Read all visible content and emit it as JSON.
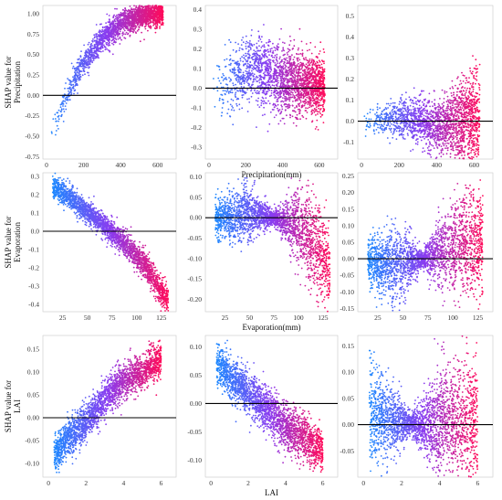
{
  "figure": {
    "colors": {
      "low": "#1e88ff",
      "mid": "#8a3cf0",
      "high": "#ff0b5a",
      "zero_line": "#000000"
    }
  },
  "chart_data": [
    {
      "type": "scatter",
      "row": 0,
      "col": 0,
      "feature": "Precipitation",
      "ylabel": "SHAP value for\nPrecipitation",
      "xlabel": "",
      "xlim": [
        -20,
        700
      ],
      "ylim": [
        -0.78,
        1.1
      ],
      "xticks": [
        0,
        200,
        400,
        600
      ],
      "yticks": [
        -0.75,
        -0.5,
        -0.25,
        0.0,
        0.25,
        0.5,
        0.75,
        1.0
      ],
      "xtick_labels": [
        "0",
        "200",
        "400",
        "600"
      ],
      "ytick_labels": [
        "-0.75",
        "-0.50",
        "-0.25",
        "0.00",
        "0.25",
        "0.50",
        "0.75",
        "1.00"
      ],
      "x_dist": [
        20,
        630,
        0.55
      ],
      "trend": [
        [
          0,
          -0.62
        ],
        [
          50,
          -0.35
        ],
        [
          100,
          -0.05
        ],
        [
          150,
          0.18
        ],
        [
          200,
          0.4
        ],
        [
          300,
          0.7
        ],
        [
          400,
          0.88
        ],
        [
          500,
          0.97
        ],
        [
          650,
          1.02
        ]
      ],
      "spread": [
        [
          0,
          0.08
        ],
        [
          300,
          0.08
        ],
        [
          650,
          0.07
        ]
      ],
      "n": 2200
    },
    {
      "type": "scatter",
      "row": 0,
      "col": 1,
      "feature": "Precipitation",
      "ylabel": "",
      "xlabel": "Precipitation(mm)",
      "xlim": [
        -20,
        700
      ],
      "ylim": [
        -0.36,
        0.42
      ],
      "xticks": [
        0,
        200,
        400,
        600
      ],
      "yticks": [
        -0.3,
        -0.2,
        -0.1,
        0.0,
        0.1,
        0.2,
        0.3,
        0.4
      ],
      "xtick_labels": [
        "0",
        "200",
        "400",
        "600"
      ],
      "ytick_labels": [
        "-0.3",
        "-0.2",
        "-0.1",
        "0.0",
        "0.1",
        "0.2",
        "0.3",
        "0.4"
      ],
      "x_dist": [
        10,
        630,
        0.55
      ],
      "trend": [
        [
          0,
          -0.12
        ],
        [
          30,
          -0.02
        ],
        [
          100,
          0.03
        ],
        [
          200,
          0.08
        ],
        [
          250,
          0.1
        ],
        [
          350,
          0.05
        ],
        [
          500,
          0.02
        ],
        [
          650,
          0.0
        ]
      ],
      "spread": [
        [
          0,
          0.1
        ],
        [
          200,
          0.08
        ],
        [
          300,
          0.09
        ],
        [
          600,
          0.07
        ]
      ],
      "n": 2200
    },
    {
      "type": "scatter",
      "row": 0,
      "col": 2,
      "feature": "Precipitation",
      "ylabel": "",
      "xlabel": "",
      "xlim": [
        -20,
        700
      ],
      "ylim": [
        -0.18,
        0.55
      ],
      "xticks": [
        0,
        200,
        400,
        600
      ],
      "yticks": [
        -0.1,
        0.0,
        0.1,
        0.2,
        0.3,
        0.4,
        0.5
      ],
      "xtick_labels": [
        "0",
        "200",
        "400",
        "600"
      ],
      "ytick_labels": [
        "-0.1",
        "0.0",
        "0.1",
        "0.2",
        "0.3",
        "0.4",
        "0.5"
      ],
      "x_dist": [
        10,
        630,
        0.55
      ],
      "trend": [
        [
          0,
          0.0
        ],
        [
          100,
          0.0
        ],
        [
          200,
          0.02
        ],
        [
          300,
          0.0
        ],
        [
          400,
          -0.02
        ],
        [
          600,
          0.0
        ]
      ],
      "spread": [
        [
          0,
          0.05
        ],
        [
          100,
          0.03
        ],
        [
          250,
          0.05
        ],
        [
          400,
          0.06
        ],
        [
          600,
          0.12
        ]
      ],
      "n": 2000
    },
    {
      "type": "scatter",
      "row": 1,
      "col": 0,
      "feature": "Evaporation",
      "ylabel": "SHAP value for\nEvaporation",
      "xlabel": "",
      "xlim": [
        5,
        140
      ],
      "ylim": [
        -0.44,
        0.32
      ],
      "xticks": [
        25,
        50,
        75,
        100,
        125
      ],
      "yticks": [
        -0.4,
        -0.3,
        -0.2,
        -0.1,
        0.0,
        0.1,
        0.2,
        0.3
      ],
      "xtick_labels": [
        "25",
        "50",
        "75",
        "100",
        "125"
      ],
      "ytick_labels": [
        "-0.4",
        "-0.3",
        "-0.2",
        "-0.1",
        "0.0",
        "0.1",
        "0.2",
        "0.3"
      ],
      "x_dist": [
        15,
        132,
        1.0
      ],
      "trend": [
        [
          15,
          0.25
        ],
        [
          40,
          0.15
        ],
        [
          70,
          0.02
        ],
        [
          90,
          -0.08
        ],
        [
          110,
          -0.2
        ],
        [
          130,
          -0.37
        ]
      ],
      "spread": [
        [
          15,
          0.03
        ],
        [
          70,
          0.03
        ],
        [
          130,
          0.04
        ]
      ],
      "n": 2400
    },
    {
      "type": "scatter",
      "row": 1,
      "col": 1,
      "feature": "Evaporation",
      "ylabel": "",
      "xlabel": "Evaporation(mm)",
      "xlim": [
        5,
        140
      ],
      "ylim": [
        -0.23,
        0.11
      ],
      "xticks": [
        25,
        50,
        75,
        100,
        125
      ],
      "yticks": [
        -0.2,
        -0.15,
        -0.1,
        -0.05,
        0.0,
        0.05,
        0.1
      ],
      "xtick_labels": [
        "25",
        "50",
        "75",
        "100",
        "125"
      ],
      "ytick_labels": [
        "-0.20",
        "-0.15",
        "-0.10",
        "-0.05",
        "0.00",
        "0.05",
        "0.10"
      ],
      "x_dist": [
        15,
        132,
        1.0
      ],
      "trend": [
        [
          20,
          0.0
        ],
        [
          50,
          0.01
        ],
        [
          75,
          0.0
        ],
        [
          100,
          -0.02
        ],
        [
          120,
          -0.08
        ],
        [
          130,
          -0.13
        ]
      ],
      "spread": [
        [
          20,
          0.025
        ],
        [
          45,
          0.035
        ],
        [
          75,
          0.008
        ],
        [
          100,
          0.045
        ],
        [
          130,
          0.06
        ]
      ],
      "n": 2400
    },
    {
      "type": "scatter",
      "row": 1,
      "col": 2,
      "feature": "Evaporation",
      "ylabel": "",
      "xlabel": "",
      "xlim": [
        5,
        140
      ],
      "ylim": [
        -0.16,
        0.26
      ],
      "xticks": [
        25,
        50,
        75,
        100,
        125
      ],
      "yticks": [
        -0.15,
        -0.1,
        -0.05,
        0.0,
        0.05,
        0.1,
        0.15,
        0.2,
        0.25
      ],
      "xtick_labels": [
        "25",
        "50",
        "75",
        "100",
        "125"
      ],
      "ytick_labels": [
        "-0.15",
        "-0.10",
        "-0.05",
        "0.00",
        "0.05",
        "0.10",
        "0.15",
        "0.20",
        "0.25"
      ],
      "x_dist": [
        15,
        130,
        1.0
      ],
      "trend": [
        [
          20,
          -0.01
        ],
        [
          45,
          -0.02
        ],
        [
          70,
          0.0
        ],
        [
          95,
          0.03
        ],
        [
          110,
          0.05
        ],
        [
          125,
          0.04
        ]
      ],
      "spread": [
        [
          20,
          0.04
        ],
        [
          45,
          0.06
        ],
        [
          70,
          0.012
        ],
        [
          95,
          0.07
        ],
        [
          125,
          0.08
        ]
      ],
      "n": 2400
    },
    {
      "type": "scatter",
      "row": 2,
      "col": 0,
      "feature": "LAI",
      "ylabel": "SHAP value for\nLAI",
      "xlabel": "",
      "xlim": [
        -0.3,
        6.8
      ],
      "ylim": [
        -0.13,
        0.18
      ],
      "xticks": [
        0,
        2,
        4,
        6
      ],
      "yticks": [
        -0.1,
        -0.05,
        0.0,
        0.05,
        0.1,
        0.15
      ],
      "xtick_labels": [
        "0",
        "2",
        "4",
        "6"
      ],
      "ytick_labels": [
        "-0.10",
        "-0.05",
        "0.00",
        "0.05",
        "0.10",
        "0.15"
      ],
      "x_dist": [
        0.3,
        6.0,
        1.0
      ],
      "trend": [
        [
          0.3,
          -0.08
        ],
        [
          1,
          -0.05
        ],
        [
          2,
          -0.01
        ],
        [
          3,
          0.04
        ],
        [
          4,
          0.08
        ],
        [
          5,
          0.1
        ],
        [
          6,
          0.13
        ]
      ],
      "spread": [
        [
          0.3,
          0.02
        ],
        [
          3,
          0.02
        ],
        [
          6,
          0.02
        ]
      ],
      "n": 2400
    },
    {
      "type": "scatter",
      "row": 2,
      "col": 1,
      "feature": "LAI",
      "ylabel": "",
      "xlabel": "LAI",
      "xlim": [
        -0.3,
        6.8
      ],
      "ylim": [
        -0.13,
        0.12
      ],
      "xticks": [
        0,
        2,
        4,
        6
      ],
      "yticks": [
        -0.1,
        -0.05,
        0.0,
        0.05,
        0.1
      ],
      "xtick_labels": [
        "0",
        "2",
        "4",
        "6"
      ],
      "ytick_labels": [
        "-0.10",
        "-0.05",
        "0.00",
        "0.05",
        "0.10"
      ],
      "x_dist": [
        0.3,
        6.0,
        1.0
      ],
      "trend": [
        [
          0.3,
          0.07
        ],
        [
          1,
          0.05
        ],
        [
          2,
          0.02
        ],
        [
          3,
          -0.01
        ],
        [
          4,
          -0.04
        ],
        [
          5,
          -0.06
        ],
        [
          5.8,
          -0.08
        ]
      ],
      "spread": [
        [
          0.3,
          0.018
        ],
        [
          3,
          0.02
        ],
        [
          5.8,
          0.02
        ]
      ],
      "n": 2400
    },
    {
      "type": "scatter",
      "row": 2,
      "col": 2,
      "feature": "LAI",
      "ylabel": "",
      "xlabel": "",
      "xlim": [
        -0.3,
        6.8
      ],
      "ylim": [
        -0.1,
        0.17
      ],
      "xticks": [
        0,
        2,
        4,
        6
      ],
      "yticks": [
        -0.05,
        0.0,
        0.05,
        0.1,
        0.15
      ],
      "xtick_labels": [
        "0",
        "2",
        "4",
        "6"
      ],
      "ytick_labels": [
        "-0.05",
        "0.00",
        "0.05",
        "0.10",
        "0.15"
      ],
      "x_dist": [
        0.3,
        6.0,
        1.0
      ],
      "trend": [
        [
          0.3,
          0.02
        ],
        [
          1,
          0.01
        ],
        [
          2.5,
          0.0
        ],
        [
          4,
          0.0
        ],
        [
          5,
          0.01
        ],
        [
          6,
          0.0
        ]
      ],
      "spread": [
        [
          0.3,
          0.05
        ],
        [
          1.5,
          0.035
        ],
        [
          2.5,
          0.01
        ],
        [
          4,
          0.05
        ],
        [
          6,
          0.06
        ]
      ],
      "n": 2400
    }
  ]
}
